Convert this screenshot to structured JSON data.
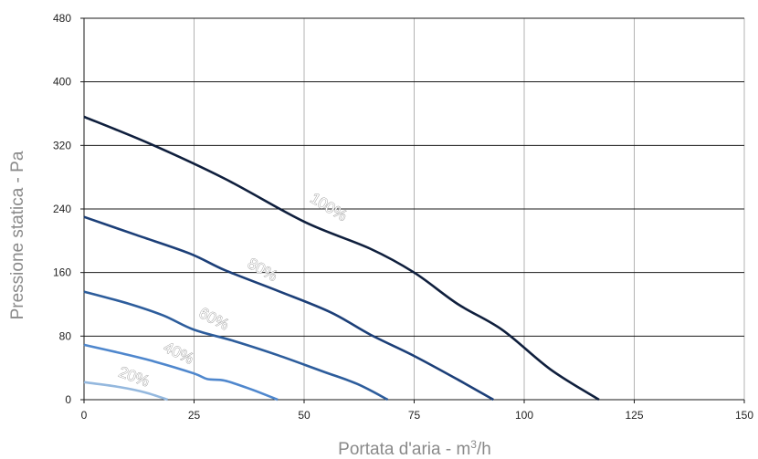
{
  "chart_data": {
    "type": "line",
    "xlabel": "Portata d'aria - m",
    "xlabel_sup": "3",
    "xlabel_suffix": "/h",
    "ylabel": "Pressione statica - Pa",
    "xlim": [
      0,
      150
    ],
    "ylim": [
      0,
      480
    ],
    "x_ticks": [
      0,
      25,
      50,
      75,
      100,
      125,
      150
    ],
    "y_ticks": [
      0,
      80,
      160,
      240,
      320,
      400,
      480
    ],
    "x_tick_labels": [
      "0",
      "25",
      "50",
      "75",
      "100",
      "125",
      "150"
    ],
    "y_tick_labels": [
      "0",
      "80",
      "160",
      "240",
      "320",
      "400",
      "480"
    ],
    "grid": true,
    "series": [
      {
        "name": "100%",
        "color": "#0f1f3d",
        "points": [
          [
            0,
            356
          ],
          [
            15,
            322
          ],
          [
            32,
            278
          ],
          [
            50,
            224
          ],
          [
            65,
            190
          ],
          [
            75,
            160
          ],
          [
            85,
            120
          ],
          [
            95,
            88
          ],
          [
            106,
            38
          ],
          [
            117,
            0
          ]
        ]
      },
      {
        "name": "80%",
        "color": "#1c3f78",
        "points": [
          [
            0,
            230
          ],
          [
            12,
            207
          ],
          [
            24,
            184
          ],
          [
            32,
            163
          ],
          [
            44,
            137
          ],
          [
            56,
            110
          ],
          [
            65,
            82
          ],
          [
            75,
            55
          ],
          [
            85,
            25
          ],
          [
            93,
            0
          ]
        ]
      },
      {
        "name": "60%",
        "color": "#2d5d9c",
        "points": [
          [
            0,
            136
          ],
          [
            10,
            121
          ],
          [
            18,
            106
          ],
          [
            25,
            88
          ],
          [
            34,
            74
          ],
          [
            44,
            56
          ],
          [
            54,
            36
          ],
          [
            62,
            20
          ],
          [
            69,
            0
          ]
        ]
      },
      {
        "name": "40%",
        "color": "#4f87cd",
        "points": [
          [
            0,
            69
          ],
          [
            8,
            59
          ],
          [
            16,
            48
          ],
          [
            25,
            33
          ],
          [
            28,
            26
          ],
          [
            32,
            24
          ],
          [
            38,
            13
          ],
          [
            44,
            0
          ]
        ]
      },
      {
        "name": "20%",
        "color": "#94b8de",
        "points": [
          [
            0,
            22
          ],
          [
            8,
            16
          ],
          [
            14,
            9
          ],
          [
            19,
            0
          ]
        ]
      }
    ],
    "curve_labels": [
      {
        "text": "100%",
        "x": 55,
        "y": 237,
        "angle": 31
      },
      {
        "text": "80%",
        "x": 40,
        "y": 158,
        "angle": 29
      },
      {
        "text": "60%",
        "x": 29,
        "y": 96,
        "angle": 27
      },
      {
        "text": "40%",
        "x": 21,
        "y": 53,
        "angle": 26
      },
      {
        "text": "20%",
        "x": 11,
        "y": 23,
        "angle": 20
      }
    ]
  }
}
